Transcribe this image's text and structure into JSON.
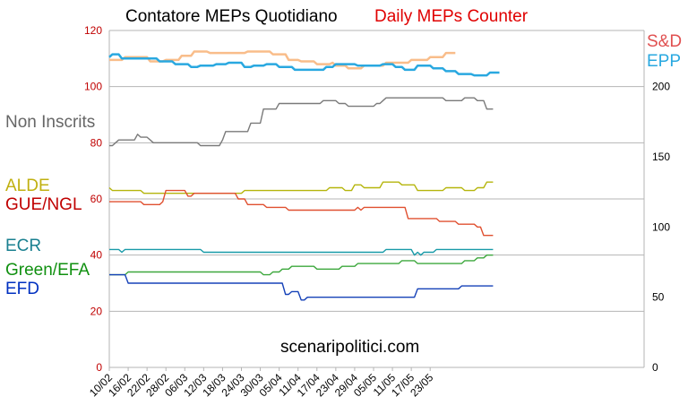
{
  "chart_data": {
    "type": "line",
    "title_it": "Contatore MEPs Quotidiano",
    "title_en": "Daily MEPs Counter",
    "watermark": "scenaripolitici.com",
    "left_axis": {
      "ylim": [
        0,
        120
      ],
      "ticks": [
        "0",
        "20",
        "40",
        "60",
        "80",
        "100",
        "120"
      ]
    },
    "right_axis": {
      "ylim": [
        0,
        240
      ],
      "ticks": [
        "0",
        "50",
        "100",
        "150",
        "200"
      ]
    },
    "x_tick_labels": [
      "10/02",
      "16/02",
      "22/02",
      "28/02",
      "06/03",
      "12/03",
      "18/03",
      "24/03",
      "30/03",
      "05/04",
      "11/04",
      "17/04",
      "23/04",
      "29/04",
      "05/05",
      "11/05",
      "17/05",
      "23/05"
    ],
    "grid": "horizontal",
    "series": [
      {
        "name": "S&D",
        "axis": "right",
        "color": "#f9bd8a",
        "points": [
          [
            0,
            219
          ],
          [
            4,
            219
          ],
          [
            5,
            221
          ],
          [
            12,
            221
          ],
          [
            13,
            218
          ],
          [
            17,
            218
          ],
          [
            18,
            219
          ],
          [
            22,
            219
          ],
          [
            23,
            222
          ],
          [
            26,
            222
          ],
          [
            27,
            225
          ],
          [
            31,
            225
          ],
          [
            32,
            224
          ],
          [
            43,
            224
          ],
          [
            44,
            225
          ],
          [
            51,
            225
          ],
          [
            52,
            223
          ],
          [
            56,
            223
          ],
          [
            57,
            219
          ],
          [
            60,
            219
          ],
          [
            61,
            218
          ],
          [
            65,
            218
          ],
          [
            66,
            216
          ],
          [
            70,
            216
          ],
          [
            71,
            217
          ],
          [
            72,
            215
          ],
          [
            75,
            215
          ],
          [
            76,
            213
          ],
          [
            80,
            213
          ],
          [
            81,
            215
          ],
          [
            87,
            215
          ],
          [
            88,
            217
          ],
          [
            95,
            217
          ],
          [
            96,
            219
          ],
          [
            101,
            219
          ],
          [
            102,
            221
          ],
          [
            106,
            221
          ],
          [
            107,
            224
          ],
          [
            110,
            224
          ]
        ]
      },
      {
        "name": "EPP",
        "axis": "right",
        "color": "#29a8e0",
        "points": [
          [
            0,
            221
          ],
          [
            1,
            223
          ],
          [
            3,
            223
          ],
          [
            4,
            220
          ],
          [
            15,
            220
          ],
          [
            16,
            218
          ],
          [
            20,
            218
          ],
          [
            21,
            216
          ],
          [
            25,
            216
          ],
          [
            26,
            214
          ],
          [
            28,
            214
          ],
          [
            29,
            215
          ],
          [
            33,
            215
          ],
          [
            34,
            216
          ],
          [
            37,
            216
          ],
          [
            38,
            217
          ],
          [
            42,
            217
          ],
          [
            43,
            214
          ],
          [
            45,
            214
          ],
          [
            46,
            215
          ],
          [
            49,
            215
          ],
          [
            50,
            216
          ],
          [
            53,
            216
          ],
          [
            54,
            214
          ],
          [
            58,
            214
          ],
          [
            59,
            212
          ],
          [
            68,
            212
          ],
          [
            69,
            214
          ],
          [
            71,
            214
          ],
          [
            72,
            216
          ],
          [
            78,
            216
          ],
          [
            79,
            215
          ],
          [
            86,
            215
          ],
          [
            87,
            216
          ],
          [
            90,
            216
          ],
          [
            91,
            214
          ],
          [
            93,
            214
          ],
          [
            94,
            212
          ],
          [
            97,
            212
          ],
          [
            98,
            215
          ],
          [
            102,
            215
          ],
          [
            103,
            213
          ],
          [
            106,
            213
          ],
          [
            107,
            211
          ],
          [
            110,
            211
          ],
          [
            111,
            209
          ],
          [
            115,
            209
          ],
          [
            116,
            208
          ],
          [
            120,
            208
          ],
          [
            121,
            210
          ],
          [
            124,
            210
          ]
        ]
      },
      {
        "name": "Non Inscrits",
        "axis": "left",
        "color": "#7a7a7a",
        "points": [
          [
            0,
            79
          ],
          [
            1,
            79
          ],
          [
            2,
            80
          ],
          [
            3,
            81
          ],
          [
            8,
            81
          ],
          [
            9,
            83
          ],
          [
            10,
            82
          ],
          [
            12,
            82
          ],
          [
            13,
            81
          ],
          [
            14,
            80
          ],
          [
            28,
            80
          ],
          [
            29,
            79
          ],
          [
            35,
            79
          ],
          [
            36,
            81
          ],
          [
            37,
            84
          ],
          [
            44,
            84
          ],
          [
            45,
            87
          ],
          [
            48,
            87
          ],
          [
            49,
            92
          ],
          [
            53,
            92
          ],
          [
            54,
            94
          ],
          [
            67,
            94
          ],
          [
            68,
            95
          ],
          [
            72,
            95
          ],
          [
            73,
            94
          ],
          [
            75,
            94
          ],
          [
            76,
            93
          ],
          [
            84,
            93
          ],
          [
            85,
            94
          ],
          [
            86,
            94
          ],
          [
            87,
            95
          ],
          [
            88,
            96
          ],
          [
            106,
            96
          ],
          [
            107,
            95
          ],
          [
            112,
            95
          ],
          [
            113,
            96
          ],
          [
            116,
            96
          ],
          [
            117,
            95
          ],
          [
            119,
            95
          ],
          [
            120,
            92
          ],
          [
            122,
            92
          ]
        ]
      },
      {
        "name": "ALDE",
        "axis": "left",
        "color": "#b5b50c",
        "points": [
          [
            0,
            64
          ],
          [
            1,
            63
          ],
          [
            10,
            63
          ],
          [
            11,
            62
          ],
          [
            42,
            62
          ],
          [
            43,
            63
          ],
          [
            69,
            63
          ],
          [
            70,
            64
          ],
          [
            74,
            64
          ],
          [
            75,
            63
          ],
          [
            77,
            63
          ],
          [
            78,
            65
          ],
          [
            80,
            65
          ],
          [
            81,
            64
          ],
          [
            86,
            64
          ],
          [
            87,
            66
          ],
          [
            92,
            66
          ],
          [
            93,
            65
          ],
          [
            97,
            65
          ],
          [
            98,
            63
          ],
          [
            106,
            63
          ],
          [
            107,
            64
          ],
          [
            112,
            64
          ],
          [
            113,
            63
          ],
          [
            116,
            63
          ],
          [
            117,
            64
          ],
          [
            119,
            64
          ],
          [
            120,
            66
          ],
          [
            122,
            66
          ]
        ]
      },
      {
        "name": "GUE/NGL",
        "axis": "left",
        "color": "#e05030",
        "points": [
          [
            0,
            59
          ],
          [
            10,
            59
          ],
          [
            11,
            58
          ],
          [
            16,
            58
          ],
          [
            17,
            59
          ],
          [
            18,
            63
          ],
          [
            24,
            63
          ],
          [
            25,
            61
          ],
          [
            26,
            61
          ],
          [
            27,
            62
          ],
          [
            40,
            62
          ],
          [
            41,
            60
          ],
          [
            43,
            60
          ],
          [
            44,
            58
          ],
          [
            49,
            58
          ],
          [
            50,
            57
          ],
          [
            56,
            57
          ],
          [
            57,
            56
          ],
          [
            78,
            56
          ],
          [
            79,
            57
          ],
          [
            80,
            56
          ],
          [
            81,
            57
          ],
          [
            94,
            57
          ],
          [
            95,
            53
          ],
          [
            104,
            53
          ],
          [
            105,
            52
          ],
          [
            110,
            52
          ],
          [
            111,
            51
          ],
          [
            116,
            51
          ],
          [
            117,
            50
          ],
          [
            118,
            50
          ],
          [
            119,
            47
          ],
          [
            122,
            47
          ]
        ]
      },
      {
        "name": "ECR",
        "axis": "left",
        "color": "#189aa8",
        "points": [
          [
            0,
            42
          ],
          [
            3,
            42
          ],
          [
            4,
            41
          ],
          [
            5,
            42
          ],
          [
            29,
            42
          ],
          [
            30,
            41
          ],
          [
            87,
            41
          ],
          [
            88,
            42
          ],
          [
            96,
            42
          ],
          [
            97,
            40
          ],
          [
            98,
            41
          ],
          [
            99,
            40
          ],
          [
            100,
            41
          ],
          [
            103,
            41
          ],
          [
            104,
            42
          ],
          [
            122,
            42
          ]
        ]
      },
      {
        "name": "Green/EFA",
        "axis": "left",
        "color": "#3da83d",
        "points": [
          [
            0,
            33
          ],
          [
            5,
            33
          ],
          [
            6,
            34
          ],
          [
            48,
            34
          ],
          [
            49,
            33
          ],
          [
            51,
            33
          ],
          [
            52,
            34
          ],
          [
            54,
            34
          ],
          [
            55,
            35
          ],
          [
            57,
            35
          ],
          [
            58,
            36
          ],
          [
            65,
            36
          ],
          [
            66,
            35
          ],
          [
            73,
            35
          ],
          [
            74,
            36
          ],
          [
            78,
            36
          ],
          [
            79,
            37
          ],
          [
            92,
            37
          ],
          [
            93,
            38
          ],
          [
            97,
            38
          ],
          [
            98,
            37
          ],
          [
            103,
            37
          ],
          [
            104,
            37
          ],
          [
            112,
            37
          ],
          [
            113,
            38
          ],
          [
            116,
            38
          ],
          [
            117,
            39
          ],
          [
            119,
            39
          ],
          [
            120,
            40
          ],
          [
            122,
            40
          ]
        ]
      },
      {
        "name": "EFD",
        "axis": "left",
        "color": "#1642b8",
        "points": [
          [
            0,
            33
          ],
          [
            5,
            33
          ],
          [
            6,
            30
          ],
          [
            55,
            30
          ],
          [
            56,
            26
          ],
          [
            57,
            26
          ],
          [
            58,
            27
          ],
          [
            60,
            27
          ],
          [
            61,
            24
          ],
          [
            62,
            24
          ],
          [
            63,
            25
          ],
          [
            97,
            25
          ],
          [
            98,
            28
          ],
          [
            111,
            28
          ],
          [
            112,
            29
          ],
          [
            122,
            29
          ]
        ]
      }
    ],
    "legend": {
      "left": [
        {
          "label": "Non Inscrits",
          "color": "#666666"
        },
        {
          "label": "ALDE",
          "color": "#c0b010"
        },
        {
          "label": "GUE/NGL",
          "color": "#c00000"
        },
        {
          "label": "ECR",
          "color": "#1a8090"
        },
        {
          "label": "Green/EFA",
          "color": "#109010"
        },
        {
          "label": "EFD",
          "color": "#0030c0"
        }
      ],
      "right": [
        {
          "label": "S&D",
          "color": "#e05050"
        },
        {
          "label": "EPP",
          "color": "#29a8e0"
        }
      ]
    }
  }
}
